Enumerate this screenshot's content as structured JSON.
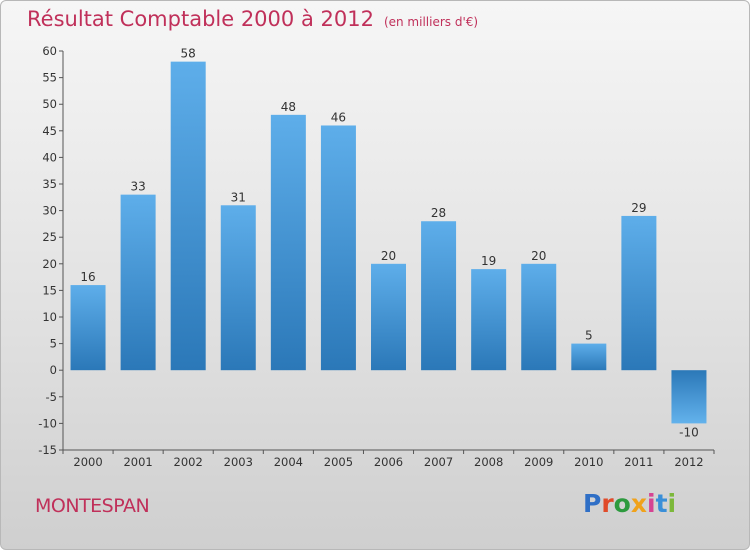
{
  "title": {
    "main": "Résultat Comptable 2000 à 2012",
    "unit": "(en milliers d'€)"
  },
  "town": "MONTESPAN",
  "logo": {
    "p": "P",
    "r": "r",
    "o": "o",
    "x": "x",
    "i1": "i",
    "t": "t",
    "i2": "i"
  },
  "colors": {
    "title": "#c0305a",
    "bar_light": "#5eaeea",
    "bar_dark": "#2b78b8",
    "neg_light": "#2b78b8",
    "neg_dark": "#63b2ec"
  },
  "chart_data": {
    "type": "bar",
    "title": "Résultat Comptable 2000 à 2012",
    "subtitle": "(en milliers d'€)",
    "categories": [
      "2000",
      "2001",
      "2002",
      "2003",
      "2004",
      "2005",
      "2006",
      "2007",
      "2008",
      "2009",
      "2010",
      "2011",
      "2012"
    ],
    "values": [
      16,
      33,
      58,
      31,
      48,
      46,
      20,
      28,
      19,
      20,
      5,
      29,
      -10
    ],
    "value_labels": [
      "16",
      "33",
      "58",
      "31",
      "48",
      "46",
      "20",
      "28",
      "19",
      "20",
      "5",
      "29",
      "-10"
    ],
    "ylim": [
      -15,
      60
    ],
    "yticks": [
      60,
      55,
      50,
      45,
      40,
      35,
      30,
      25,
      20,
      15,
      10,
      5,
      0,
      -5,
      -10,
      -15
    ],
    "ytick_labels": [
      "60",
      "55",
      "50",
      "45",
      "40",
      "35",
      "30",
      "25",
      "20",
      "15",
      "10",
      "5",
      "0",
      "-5",
      "-10",
      "-15"
    ],
    "grid": false,
    "xlabel": "",
    "ylabel": ""
  }
}
